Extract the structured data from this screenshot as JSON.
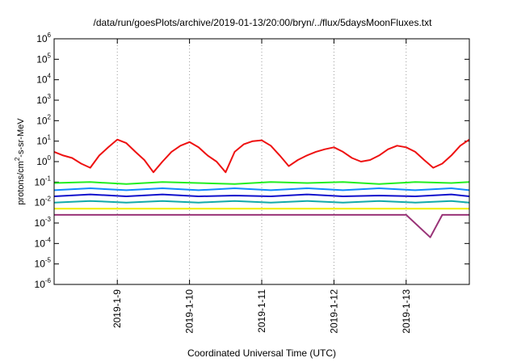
{
  "chart_data": {
    "type": "line",
    "title": "/data/run/goesPlots/archive/2019-01-13/20:00/bryn/../flux/5daysMoonFluxes.txt",
    "xlabel": "Coordinated Universal Time (UTC)",
    "ylabel": {
      "prefix": "protons/cm",
      "sup": "2",
      "suffix": "-s-sr-MeV"
    },
    "yscale": "log",
    "ylim": [
      -6,
      6
    ],
    "yticks": [
      {
        "base": "10",
        "exp": "-6",
        "value": -6
      },
      {
        "base": "10",
        "exp": "-5",
        "value": -5
      },
      {
        "base": "10",
        "exp": "-4",
        "value": -4
      },
      {
        "base": "10",
        "exp": "-3",
        "value": -3
      },
      {
        "base": "10",
        "exp": "-2",
        "value": -2
      },
      {
        "base": "10",
        "exp": "-1",
        "value": -1
      },
      {
        "base": "10",
        "exp": "0",
        "value": 0
      },
      {
        "base": "10",
        "exp": "1",
        "value": 1
      },
      {
        "base": "10",
        "exp": "2",
        "value": 2
      },
      {
        "base": "10",
        "exp": "3",
        "value": 3
      },
      {
        "base": "10",
        "exp": "4",
        "value": 4
      },
      {
        "base": "10",
        "exp": "5",
        "value": 5
      },
      {
        "base": "10",
        "exp": "6",
        "value": 6
      }
    ],
    "xlim": [
      "2019-01-08T03:00",
      "2019-01-13T21:00"
    ],
    "xticks": [
      {
        "label": "2019-1-9",
        "value": "2019-01-09T00:00"
      },
      {
        "label": "2019-1-10",
        "value": "2019-01-10T00:00"
      },
      {
        "label": "2019-1-11",
        "value": "2019-01-11T00:00"
      },
      {
        "label": "2019-1-12",
        "value": "2019-01-12T00:00"
      },
      {
        "label": "2019-1-13",
        "value": "2019-01-13T00:00"
      }
    ],
    "grid": {
      "vertical": true,
      "horizontal": false,
      "style": "dotted"
    },
    "legend": "none",
    "series": [
      {
        "color": "#ee1111",
        "x": [
          "2019-01-08T03:00",
          "2019-01-08T06:00",
          "2019-01-08T09:00",
          "2019-01-08T12:00",
          "2019-01-08T15:00",
          "2019-01-08T18:00",
          "2019-01-08T21:00",
          "2019-01-09T00:00",
          "2019-01-09T03:00",
          "2019-01-09T06:00",
          "2019-01-09T09:00",
          "2019-01-09T12:00",
          "2019-01-09T15:00",
          "2019-01-09T18:00",
          "2019-01-09T21:00",
          "2019-01-10T00:00",
          "2019-01-10T03:00",
          "2019-01-10T06:00",
          "2019-01-10T09:00",
          "2019-01-10T12:00",
          "2019-01-10T15:00",
          "2019-01-10T18:00",
          "2019-01-10T21:00",
          "2019-01-11T00:00",
          "2019-01-11T03:00",
          "2019-01-11T06:00",
          "2019-01-11T09:00",
          "2019-01-11T12:00",
          "2019-01-11T15:00",
          "2019-01-11T18:00",
          "2019-01-11T21:00",
          "2019-01-12T00:00",
          "2019-01-12T03:00",
          "2019-01-12T06:00",
          "2019-01-12T09:00",
          "2019-01-12T12:00",
          "2019-01-12T15:00",
          "2019-01-12T18:00",
          "2019-01-12T21:00",
          "2019-01-13T00:00",
          "2019-01-13T03:00",
          "2019-01-13T06:00",
          "2019-01-13T09:00",
          "2019-01-13T12:00",
          "2019-01-13T15:00",
          "2019-01-13T18:00",
          "2019-01-13T21:00"
        ],
        "y": [
          3,
          2,
          1.5,
          0.8,
          0.5,
          2,
          5,
          12,
          8,
          3,
          1.2,
          0.3,
          1,
          3,
          6,
          9,
          5,
          2,
          1,
          0.3,
          3,
          7,
          10,
          11,
          6,
          2,
          0.6,
          1.2,
          2,
          3,
          4,
          5,
          3,
          1.5,
          1,
          1.2,
          2,
          4,
          6,
          5,
          3,
          1.2,
          0.5,
          0.8,
          2,
          6,
          12
        ]
      },
      {
        "color": "#22ee22",
        "x": [
          "2019-01-08T03:00",
          "2019-01-08T15:00",
          "2019-01-09T03:00",
          "2019-01-09T15:00",
          "2019-01-10T03:00",
          "2019-01-10T15:00",
          "2019-01-11T03:00",
          "2019-01-11T15:00",
          "2019-01-12T03:00",
          "2019-01-12T15:00",
          "2019-01-13T03:00",
          "2019-01-13T15:00",
          "2019-01-13T21:00"
        ],
        "y": [
          0.09,
          0.1,
          0.08,
          0.1,
          0.09,
          0.08,
          0.1,
          0.09,
          0.1,
          0.08,
          0.1,
          0.09,
          0.1
        ]
      },
      {
        "color": "#1188ff",
        "x": [
          "2019-01-08T03:00",
          "2019-01-08T15:00",
          "2019-01-09T03:00",
          "2019-01-09T15:00",
          "2019-01-10T03:00",
          "2019-01-10T15:00",
          "2019-01-11T03:00",
          "2019-01-11T15:00",
          "2019-01-12T03:00",
          "2019-01-12T15:00",
          "2019-01-13T03:00",
          "2019-01-13T15:00",
          "2019-01-13T21:00"
        ],
        "y": [
          0.04,
          0.05,
          0.04,
          0.05,
          0.04,
          0.05,
          0.04,
          0.05,
          0.04,
          0.05,
          0.04,
          0.05,
          0.04
        ]
      },
      {
        "color": "#1111cc",
        "x": [
          "2019-01-08T03:00",
          "2019-01-08T15:00",
          "2019-01-09T03:00",
          "2019-01-09T15:00",
          "2019-01-10T03:00",
          "2019-01-10T15:00",
          "2019-01-11T03:00",
          "2019-01-11T15:00",
          "2019-01-12T03:00",
          "2019-01-12T15:00",
          "2019-01-13T03:00",
          "2019-01-13T15:00",
          "2019-01-13T21:00"
        ],
        "y": [
          0.02,
          0.025,
          0.02,
          0.025,
          0.02,
          0.022,
          0.02,
          0.025,
          0.02,
          0.022,
          0.02,
          0.025,
          0.02
        ]
      },
      {
        "color": "#11aaaa",
        "x": [
          "2019-01-08T03:00",
          "2019-01-08T15:00",
          "2019-01-09T03:00",
          "2019-01-09T15:00",
          "2019-01-10T03:00",
          "2019-01-10T15:00",
          "2019-01-11T03:00",
          "2019-01-11T15:00",
          "2019-01-12T03:00",
          "2019-01-12T15:00",
          "2019-01-13T03:00",
          "2019-01-13T15:00",
          "2019-01-13T21:00"
        ],
        "y": [
          0.01,
          0.012,
          0.01,
          0.012,
          0.01,
          0.012,
          0.01,
          0.012,
          0.01,
          0.012,
          0.01,
          0.012,
          0.01
        ]
      },
      {
        "color": "#eeee00",
        "x": [
          "2019-01-08T03:00",
          "2019-01-09T03:00",
          "2019-01-10T03:00",
          "2019-01-11T03:00",
          "2019-01-12T03:00",
          "2019-01-13T03:00",
          "2019-01-13T21:00"
        ],
        "y": [
          0.005,
          0.005,
          0.005,
          0.005,
          0.005,
          0.005,
          0.005
        ]
      },
      {
        "color": "#993377",
        "x": [
          "2019-01-08T03:00",
          "2019-01-08T12:00",
          "2019-01-09T00:00",
          "2019-01-09T12:00",
          "2019-01-10T00:00",
          "2019-01-10T12:00",
          "2019-01-11T00:00",
          "2019-01-11T12:00",
          "2019-01-11T23:00",
          "2019-01-12T12:00",
          "2019-01-13T00:00",
          "2019-01-13T08:00",
          "2019-01-13T12:00",
          "2019-01-13T21:00"
        ],
        "y": [
          0.0025,
          0.0025,
          0.0025,
          0.0025,
          0.0025,
          0.0025,
          0.0025,
          0.0025,
          0.0025,
          0.0025,
          0.0025,
          0.0002,
          0.0025,
          0.0025
        ]
      }
    ]
  }
}
